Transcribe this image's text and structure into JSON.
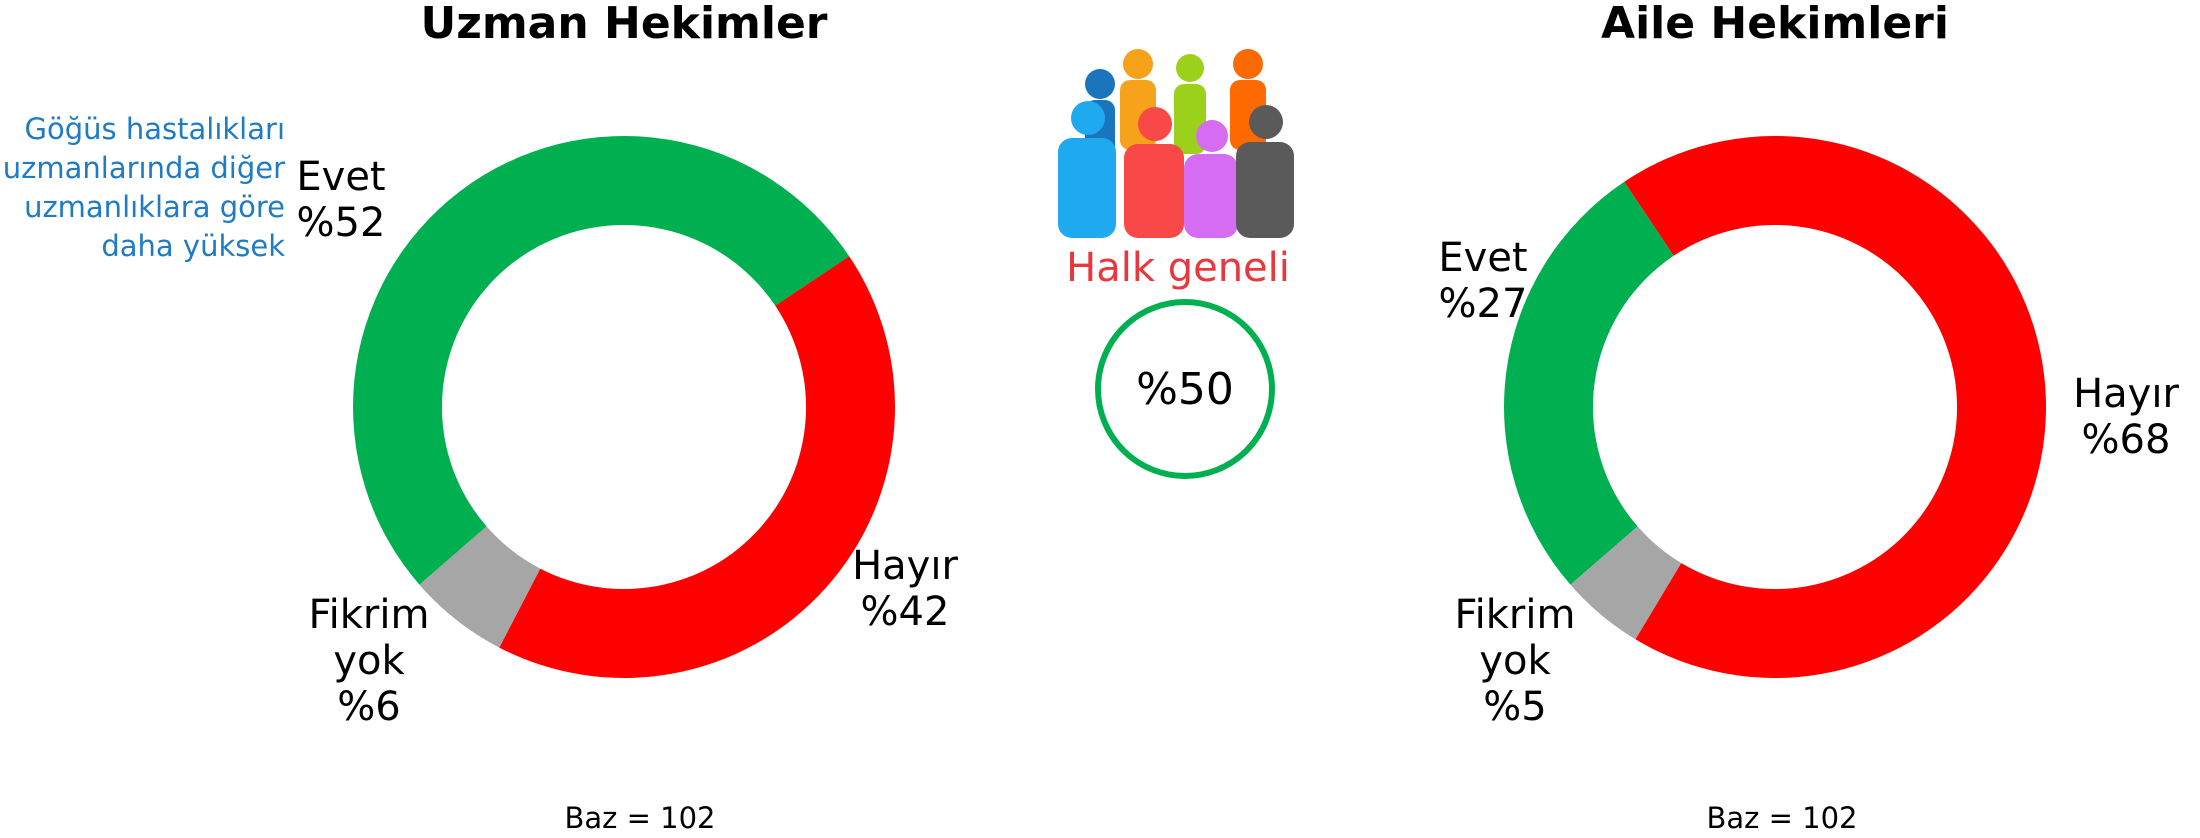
{
  "chart_data": [
    {
      "type": "pie",
      "title": "Uzman Hekimler",
      "categories": [
        "Evet",
        "Hayır",
        "Fikrim yok"
      ],
      "values": [
        52,
        42,
        6
      ],
      "value_labels": [
        "%52",
        "%42",
        "%6"
      ],
      "colors": [
        "#00b050",
        "#ff0000",
        "#a6a6a6"
      ],
      "annotation": [
        "Göğüs hastalıkları",
        "uzmanlarında diğer",
        "uzmanlıklara göre",
        "daha yüksek"
      ],
      "note": "Baz = 102"
    },
    {
      "type": "pie",
      "title": "Aile Hekimleri",
      "categories": [
        "Evet",
        "Hayır",
        "Fikrim yok"
      ],
      "values": [
        27,
        68,
        5
      ],
      "value_labels": [
        "%27",
        "%68",
        "%5"
      ],
      "colors": [
        "#00b050",
        "#ff0000",
        "#a6a6a6"
      ],
      "note": "Baz = 102"
    }
  ],
  "overall": {
    "label": "Halk geneli",
    "value_label": "%50"
  }
}
